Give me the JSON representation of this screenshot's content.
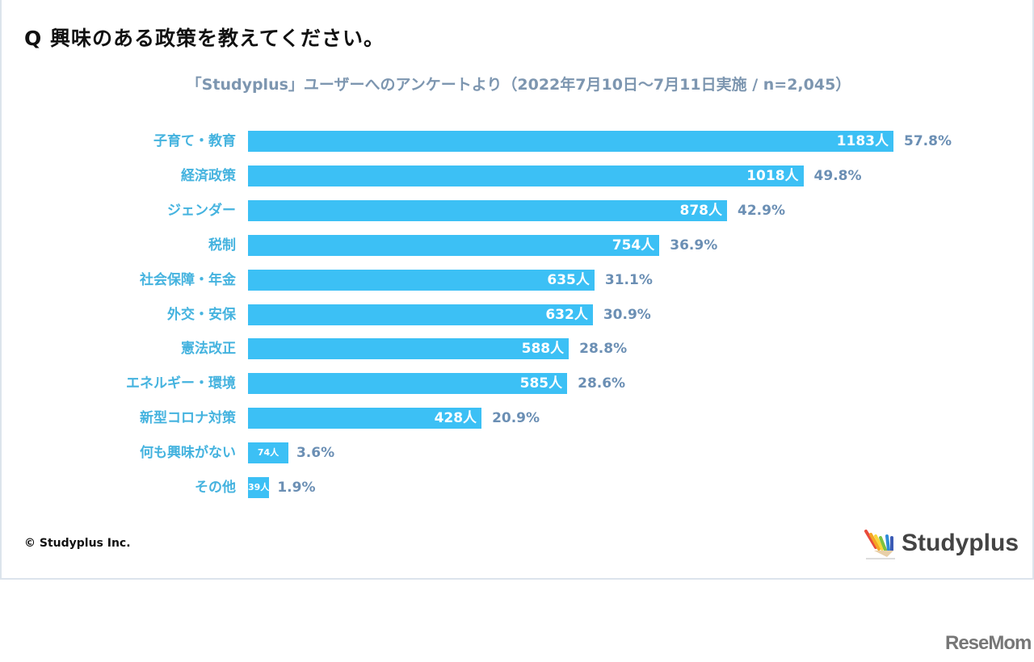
{
  "title": "Q 興味のある政策を教えてください。",
  "subtitle": "「Studyplus」ユーザーへのアンケートより（2022年7月10日〜7月11日実施 / n=2,045）",
  "copyright": "© Studyplus Inc.",
  "logo": "Studyplus",
  "watermark": "ReseMom",
  "colors": {
    "bar": "#3cc0f5",
    "category": "#45b3df",
    "percent": "#6b8fb4"
  },
  "chart_data": {
    "type": "bar",
    "orientation": "horizontal",
    "categories": [
      "子育て・教育",
      "経済政策",
      "ジェンダー",
      "税制",
      "社会保障・年金",
      "外交・安保",
      "憲法改正",
      "エネルギー・環境",
      "新型コロナ対策",
      "何も興味がない",
      "その他"
    ],
    "values": [
      1183,
      1018,
      878,
      754,
      635,
      632,
      588,
      585,
      428,
      74,
      39
    ],
    "count_labels": [
      "1183人",
      "1018人",
      "878人",
      "754人",
      "635人",
      "632人",
      "588人",
      "585人",
      "428人",
      "74人",
      "39人"
    ],
    "percent_labels": [
      "57.8%",
      "49.8%",
      "42.9%",
      "36.9%",
      "31.1%",
      "30.9%",
      "28.8%",
      "28.6%",
      "20.9%",
      "3.6%",
      "1.9%"
    ],
    "grid": false
  }
}
